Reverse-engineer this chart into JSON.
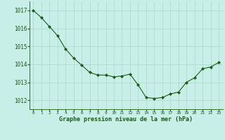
{
  "x": [
    0,
    1,
    2,
    3,
    4,
    5,
    6,
    7,
    8,
    9,
    10,
    11,
    12,
    13,
    14,
    15,
    16,
    17,
    18,
    19,
    20,
    21,
    22,
    23
  ],
  "y": [
    1017.0,
    1016.6,
    1016.1,
    1015.6,
    1014.85,
    1014.35,
    1013.95,
    1013.55,
    1013.4,
    1013.4,
    1013.3,
    1013.35,
    1013.45,
    1012.85,
    1012.15,
    1012.1,
    1012.15,
    1012.35,
    1012.45,
    1013.0,
    1013.25,
    1013.75,
    1013.85,
    1014.1
  ],
  "line_color": "#1a5c1a",
  "marker": "D",
  "marker_size": 2.0,
  "bg_color": "#c8eee8",
  "grid_color": "#a8d8cc",
  "xlabel": "Graphe pression niveau de la mer (hPa)",
  "xlabel_color": "#1a5c1a",
  "tick_color": "#1a5c1a",
  "ylim": [
    1011.5,
    1017.5
  ],
  "yticks": [
    1012,
    1013,
    1014,
    1015,
    1016,
    1017
  ],
  "xticks": [
    0,
    1,
    2,
    3,
    4,
    5,
    6,
    7,
    8,
    9,
    10,
    11,
    12,
    13,
    14,
    15,
    16,
    17,
    18,
    19,
    20,
    21,
    22,
    23
  ],
  "xlim": [
    -0.5,
    23.5
  ]
}
